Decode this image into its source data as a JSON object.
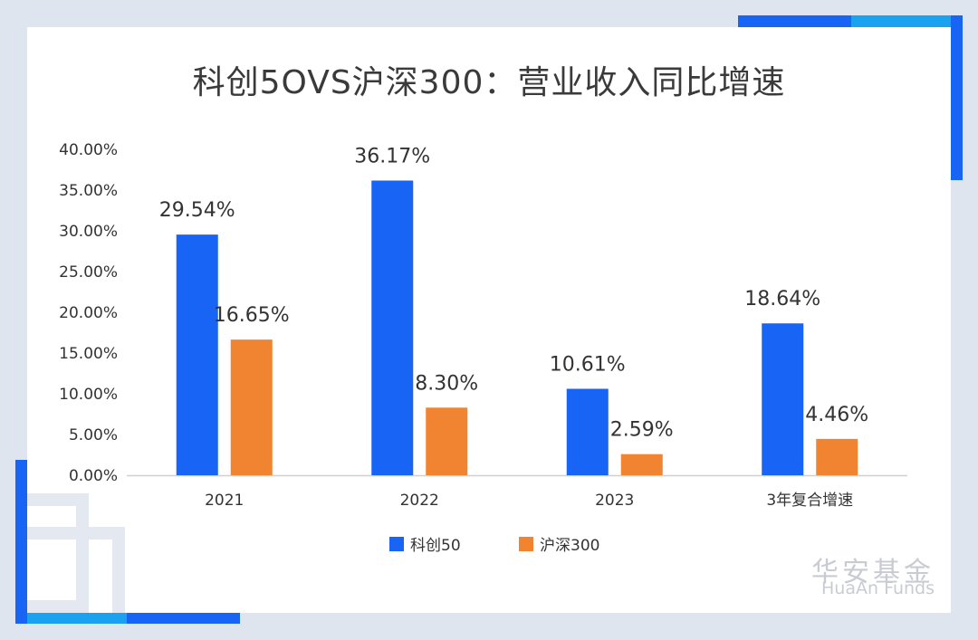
{
  "title": "科创5OVS沪深300：营业收入同比增速",
  "brand": {
    "cn": "华安基金",
    "en": "HuaAn Funds"
  },
  "colors": {
    "series1": "#1764f5",
    "series2": "#f08430",
    "frame": "#1764f5",
    "frame_light": "#1aa2f0"
  },
  "chart_data": {
    "type": "bar",
    "title": "科创5OVS沪深300：营业收入同比增速",
    "categories": [
      "2021",
      "2022",
      "2023",
      "3年复合增速"
    ],
    "series": [
      {
        "name": "科创50",
        "values": [
          29.54,
          36.17,
          10.61,
          18.64
        ],
        "labels": [
          "29.54%",
          "36.17%",
          "10.61%",
          "18.64%"
        ]
      },
      {
        "name": "沪深300",
        "values": [
          16.65,
          8.3,
          2.59,
          4.46
        ],
        "labels": [
          "16.65%",
          "8.30%",
          "2.59%",
          "4.46%"
        ]
      }
    ],
    "ylim": [
      0,
      40
    ],
    "yticks": [
      "0.00%",
      "5.00%",
      "10.00%",
      "15.00%",
      "20.00%",
      "25.00%",
      "30.00%",
      "35.00%",
      "40.00%"
    ],
    "ytick_values": [
      0,
      5,
      10,
      15,
      20,
      25,
      30,
      35,
      40
    ],
    "legend_position": "bottom",
    "grid": false,
    "xlabel": "",
    "ylabel": ""
  }
}
